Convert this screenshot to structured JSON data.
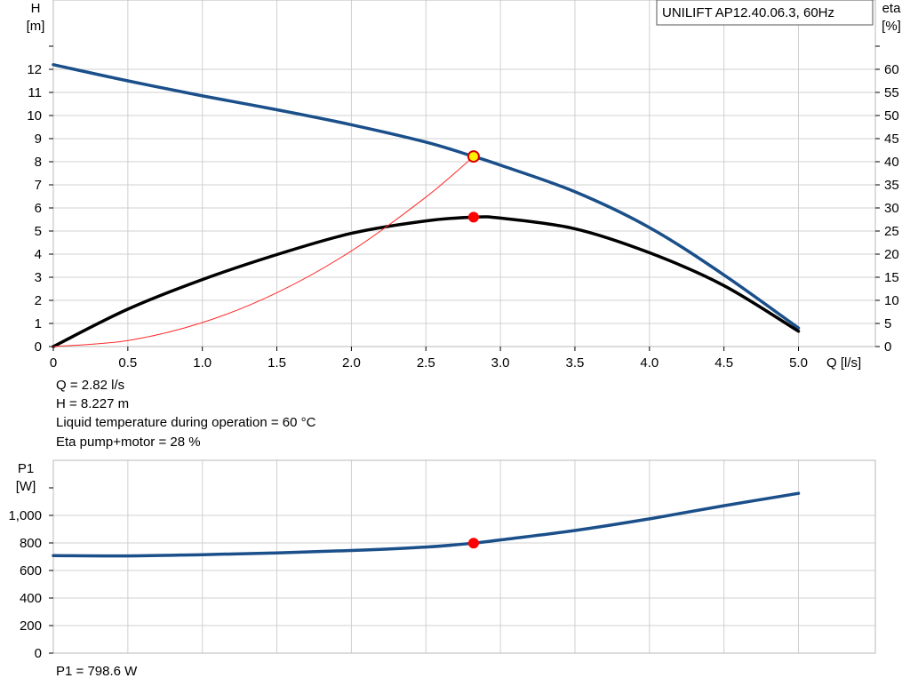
{
  "chart_data": [
    {
      "type": "line",
      "title": "UNILIFT AP12.40.06.3, 60Hz",
      "xlabel": "Q [l/s]",
      "ylabel_left": [
        "H",
        "[m]"
      ],
      "ylabel_right": [
        "eta",
        "[%]"
      ],
      "xlim": [
        0,
        5.0
      ],
      "ylim_left": [
        0,
        12
      ],
      "ylim_right": [
        0,
        60
      ],
      "x_ticks": [
        "0",
        "0.5",
        "1.0",
        "1.5",
        "2.0",
        "2.5",
        "3.0",
        "3.5",
        "4.0",
        "4.5",
        "5.0"
      ],
      "y_left_ticks": [
        "0",
        "1",
        "2",
        "3",
        "4",
        "5",
        "6",
        "7",
        "8",
        "9",
        "10",
        "11",
        "12"
      ],
      "y_right_ticks": [
        "0",
        "5",
        "10",
        "15",
        "20",
        "25",
        "30",
        "35",
        "40",
        "45",
        "50",
        "55",
        "60"
      ],
      "grid": true,
      "series": [
        {
          "axis": "left",
          "color": "#1a4f8a",
          "x": [
            0,
            0.5,
            1.0,
            1.5,
            2.0,
            2.5,
            2.82,
            3.0,
            3.5,
            4.0,
            4.5,
            5.0
          ],
          "y": [
            12.2,
            11.5,
            10.85,
            10.25,
            9.6,
            8.85,
            8.227,
            7.85,
            6.7,
            5.15,
            3.1,
            0.8
          ]
        },
        {
          "axis": "right",
          "color": "#000000",
          "x": [
            0,
            0.5,
            1.0,
            1.5,
            2.0,
            2.5,
            2.82,
            3.0,
            3.5,
            4.0,
            4.5,
            5.0
          ],
          "y": [
            0,
            8.1,
            14.5,
            19.9,
            24.5,
            27.2,
            28.0,
            27.8,
            25.5,
            20.3,
            13.2,
            3.3
          ]
        },
        {
          "axis": "left",
          "color": "#ff2a2a",
          "x": [
            0,
            0.5,
            1.0,
            1.5,
            2.0,
            2.5,
            2.82
          ],
          "y": [
            0,
            0.26,
            1.04,
            2.33,
            4.14,
            6.47,
            8.227
          ]
        }
      ],
      "markers": [
        {
          "x": 2.82,
          "y": 8.227,
          "axis": "left",
          "fill": "#ffef00",
          "stroke": "#d40000"
        },
        {
          "x": 2.82,
          "y": 28.0,
          "axis": "right",
          "fill": "#ff0000",
          "stroke": "#ff0000"
        }
      ]
    },
    {
      "type": "line",
      "ylabel": [
        "P1",
        "[W]"
      ],
      "xlim": [
        0,
        5.0
      ],
      "ylim": [
        0,
        1000
      ],
      "y_ticks": [
        "0",
        "200",
        "400",
        "600",
        "800",
        "1,000"
      ],
      "grid": true,
      "series": [
        {
          "color": "#1a4f8a",
          "x": [
            0,
            0.5,
            1.0,
            1.5,
            2.0,
            2.5,
            2.82,
            3.0,
            3.5,
            4.0,
            4.5,
            5.0
          ],
          "y": [
            708,
            706,
            715,
            728,
            745,
            770,
            798.6,
            822,
            890,
            975,
            1070,
            1160
          ]
        }
      ],
      "markers": [
        {
          "x": 2.82,
          "y": 798.6,
          "fill": "#ff0000",
          "stroke": "#ff0000"
        }
      ]
    }
  ],
  "info_top": [
    "Q = 2.82 l/s",
    "H = 8.227 m",
    "Liquid temperature during operation = 60 °C",
    "Eta pump+motor = 28 %"
  ],
  "info_bottom": "P1 = 798.6 W"
}
